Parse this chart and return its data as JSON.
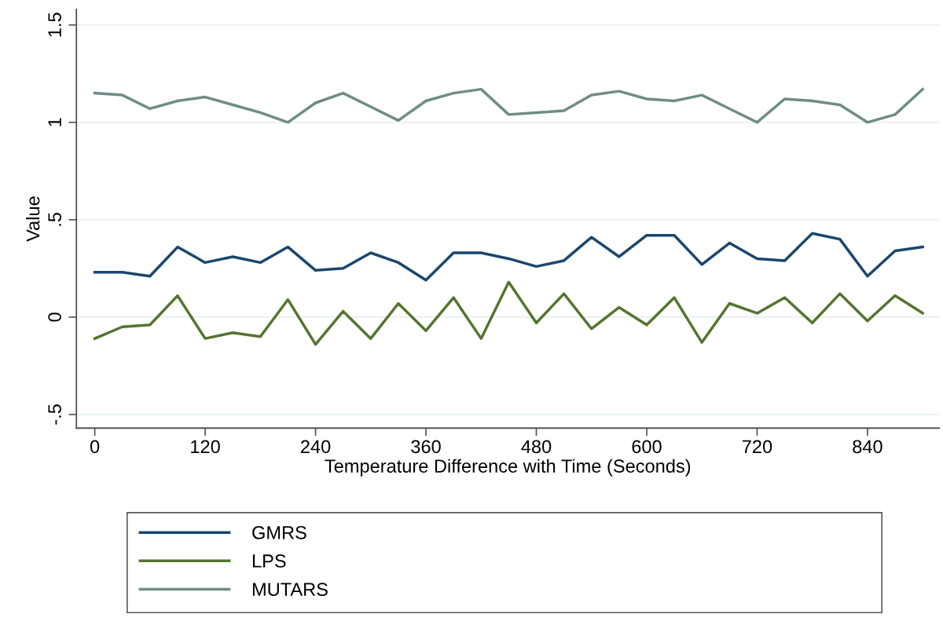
{
  "chart_data": {
    "type": "line",
    "xlabel": "Temperature Difference with Time (Seconds)",
    "ylabel": "Value",
    "x": [
      0,
      30,
      60,
      90,
      120,
      150,
      180,
      210,
      240,
      270,
      300,
      330,
      360,
      390,
      420,
      450,
      480,
      510,
      540,
      570,
      600,
      630,
      660,
      690,
      720,
      750,
      780,
      810,
      840,
      870,
      900
    ],
    "series": [
      {
        "name": "GMRS",
        "color": "#1a476f",
        "values": [
          0.23,
          0.23,
          0.21,
          0.36,
          0.28,
          0.31,
          0.28,
          0.36,
          0.24,
          0.25,
          0.33,
          0.28,
          0.19,
          0.33,
          0.33,
          0.3,
          0.26,
          0.29,
          0.41,
          0.31,
          0.42,
          0.42,
          0.27,
          0.38,
          0.3,
          0.29,
          0.43,
          0.4,
          0.21,
          0.34,
          0.36
        ]
      },
      {
        "name": "LPS",
        "color": "#55752f",
        "values": [
          -0.11,
          -0.05,
          -0.04,
          0.11,
          -0.11,
          -0.08,
          -0.1,
          0.09,
          -0.14,
          0.03,
          -0.11,
          0.07,
          -0.07,
          0.1,
          -0.11,
          0.18,
          -0.03,
          0.12,
          -0.06,
          0.05,
          -0.04,
          0.1,
          -0.13,
          0.07,
          0.02,
          0.1,
          -0.03,
          0.12,
          -0.02,
          0.11,
          0.02
        ]
      },
      {
        "name": "MUTARS",
        "color": "#6e8e84",
        "values": [
          1.15,
          1.14,
          1.07,
          1.11,
          1.13,
          1.09,
          1.05,
          1.0,
          1.1,
          1.15,
          1.08,
          1.01,
          1.11,
          1.15,
          1.17,
          1.04,
          1.05,
          1.06,
          1.14,
          1.16,
          1.12,
          1.11,
          1.14,
          1.07,
          1.0,
          1.12,
          1.11,
          1.09,
          1.0,
          1.04,
          1.17
        ]
      }
    ],
    "xlim": [
      -20,
      918
    ],
    "xticks": [
      0,
      120,
      240,
      360,
      480,
      600,
      720,
      840
    ],
    "ylim": [
      -0.57,
      1.58
    ],
    "yticks": [
      {
        "value": -0.5,
        "label": "-.5"
      },
      0,
      {
        "value": 0.5,
        "label": ".5"
      },
      1,
      1.5
    ],
    "grid": "y",
    "legend": "bottom",
    "line_style": "solid",
    "marker": "none"
  }
}
